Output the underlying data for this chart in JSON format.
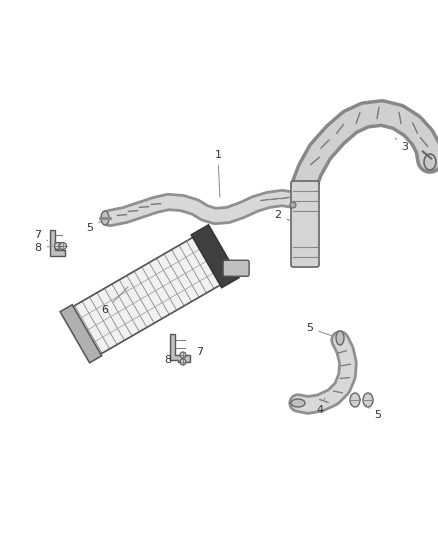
{
  "background_color": "#ffffff",
  "line_color": "#555555",
  "label_color": "#333333",
  "fig_width": 4.38,
  "fig_height": 5.33,
  "dpi": 100,
  "hose1_color_outer": "#888888",
  "hose1_color_inner": "#d8d8d8",
  "hose3_color_outer": "#888888",
  "hose3_color_inner": "#d0d0d0",
  "cooler_fin_color": "#666666",
  "cooler_bg": "#e8e8e8",
  "bracket_color": "#aaaaaa",
  "clamp_color": "#bbbbbb"
}
